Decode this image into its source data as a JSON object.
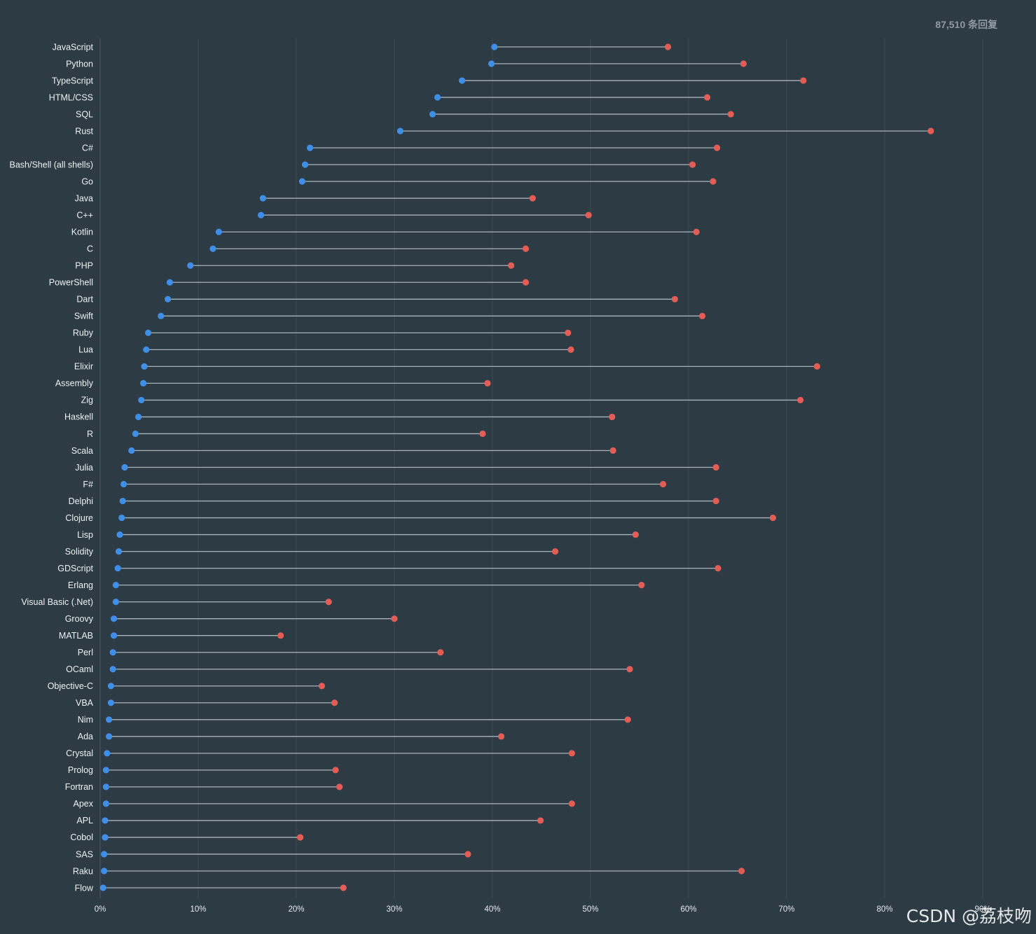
{
  "header": {
    "responses": "87,510 条回复"
  },
  "watermark": "CSDN @荔枝吻",
  "colors": {
    "background": "#2d3b44",
    "series_blue": "#3f8ee8",
    "series_red": "#e35d57",
    "connector": "#a9b3b9"
  },
  "chart_data": {
    "type": "scatter",
    "categories": [
      "JavaScript",
      "Python",
      "TypeScript",
      "HTML/CSS",
      "SQL",
      "Rust",
      "C#",
      "Bash/Shell (all shells)",
      "Go",
      "Java",
      "C++",
      "Kotlin",
      "C",
      "PHP",
      "PowerShell",
      "Dart",
      "Swift",
      "Ruby",
      "Lua",
      "Elixir",
      "Assembly",
      "Zig",
      "Haskell",
      "R",
      "Scala",
      "Julia",
      "F#",
      "Delphi",
      "Clojure",
      "Lisp",
      "Solidity",
      "GDScript",
      "Erlang",
      "Visual Basic (.Net)",
      "Groovy",
      "MATLAB",
      "Perl",
      "OCaml",
      "Objective-C",
      "VBA",
      "Nim",
      "Ada",
      "Crystal",
      "Prolog",
      "Fortran",
      "Apex",
      "APL",
      "Cobol",
      "SAS",
      "Raku",
      "Flow"
    ],
    "series": [
      {
        "color": "#3f8ee8",
        "values": [
          40.2,
          39.9,
          36.9,
          34.4,
          33.9,
          30.6,
          21.4,
          20.9,
          20.6,
          16.6,
          16.4,
          12.1,
          11.5,
          9.2,
          7.1,
          6.9,
          6.2,
          4.9,
          4.7,
          4.5,
          4.4,
          4.2,
          3.9,
          3.6,
          3.2,
          2.5,
          2.4,
          2.3,
          2.2,
          2.0,
          1.9,
          1.8,
          1.6,
          1.6,
          1.4,
          1.4,
          1.3,
          1.3,
          1.1,
          1.1,
          0.9,
          0.9,
          0.7,
          0.6,
          0.6,
          0.6,
          0.5,
          0.5,
          0.4,
          0.4,
          0.3
        ]
      },
      {
        "color": "#e35d57",
        "values": [
          57.9,
          65.6,
          71.7,
          61.9,
          64.3,
          84.7,
          62.9,
          60.4,
          62.5,
          44.1,
          49.8,
          60.8,
          43.4,
          41.9,
          43.4,
          58.6,
          61.4,
          47.7,
          48.0,
          73.1,
          39.5,
          71.4,
          52.2,
          39.0,
          52.3,
          62.8,
          57.4,
          62.8,
          68.6,
          54.6,
          46.4,
          63.0,
          55.2,
          23.3,
          30.0,
          18.4,
          34.7,
          54.0,
          22.6,
          23.9,
          53.8,
          40.9,
          48.1,
          24.0,
          24.4,
          48.1,
          44.9,
          20.4,
          37.5,
          65.4,
          24.8
        ]
      }
    ],
    "xlim": [
      0,
      90
    ],
    "x_ticks": [
      0,
      10,
      20,
      30,
      40,
      50,
      60,
      70,
      80,
      90
    ],
    "x_tick_labels": [
      "0%",
      "10%",
      "20%",
      "30%",
      "40%",
      "50%",
      "60%",
      "70%",
      "80%",
      "90%"
    ],
    "grid": "vertical",
    "legend": "none"
  }
}
